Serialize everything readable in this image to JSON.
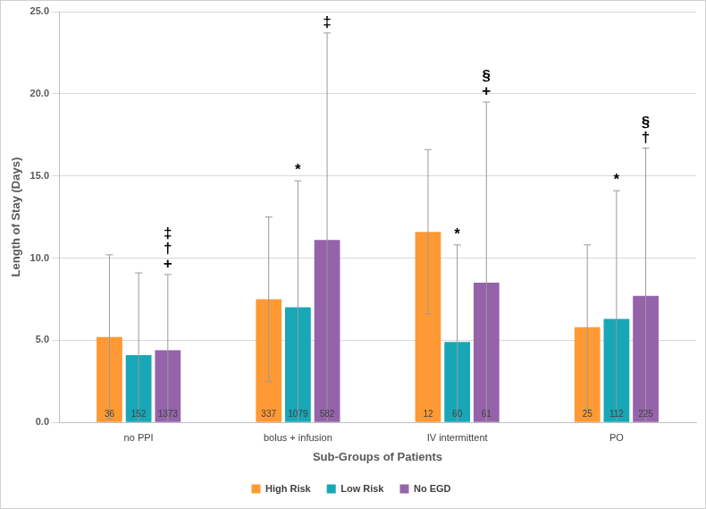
{
  "chart_data": {
    "type": "bar",
    "x_label": "Sub-Groups of Patients",
    "y_label": "Length of Stay (Days)",
    "categories": [
      "no PPI",
      "bolus + infusion",
      "IV intermittent",
      "PO"
    ],
    "series": [
      {
        "name": "High Risk",
        "color": "#FF9933",
        "values": [
          5.2,
          7.5,
          11.6,
          5.8
        ],
        "error": [
          5.0,
          5.0,
          5.0,
          5.0
        ],
        "n": [
          36,
          337,
          12,
          25
        ]
      },
      {
        "name": "Low Risk",
        "color": "#17A7B7",
        "values": [
          4.1,
          7.0,
          4.9,
          6.3
        ],
        "error": [
          5.0,
          7.7,
          5.9,
          7.8
        ],
        "n": [
          152,
          1079,
          60,
          112
        ]
      },
      {
        "name": "No EGD",
        "color": "#9563AA",
        "values": [
          4.4,
          11.1,
          8.5,
          7.7
        ],
        "error": [
          4.6,
          12.6,
          11.0,
          9.0
        ],
        "n": [
          1373,
          582,
          61,
          225
        ]
      }
    ],
    "annotations": [
      {
        "category": "no PPI",
        "series": "No EGD",
        "symbols": [
          "‡",
          "†",
          "+"
        ]
      },
      {
        "category": "bolus + infusion",
        "series": "Low Risk",
        "symbols": [
          "*"
        ]
      },
      {
        "category": "bolus + infusion",
        "series": "No EGD",
        "symbols": [
          "‡"
        ]
      },
      {
        "category": "IV intermittent",
        "series": "Low Risk",
        "symbols": [
          "*"
        ]
      },
      {
        "category": "IV intermittent",
        "series": "No EGD",
        "symbols": [
          "§",
          "+"
        ]
      },
      {
        "category": "PO",
        "series": "Low Risk",
        "symbols": [
          "*"
        ]
      },
      {
        "category": "PO",
        "series": "No EGD",
        "symbols": [
          "§",
          "†"
        ]
      }
    ],
    "ylim": [
      0,
      25
    ],
    "yticks": [
      {
        "value": 0,
        "label": "0.0"
      },
      {
        "value": 5,
        "label": "5.0"
      },
      {
        "value": 10,
        "label": "10.0"
      },
      {
        "value": 15,
        "label": "15.0"
      },
      {
        "value": 20,
        "label": "20.0"
      },
      {
        "value": 25,
        "label": "25.0"
      }
    ],
    "grid": true,
    "legend": "bottom"
  }
}
